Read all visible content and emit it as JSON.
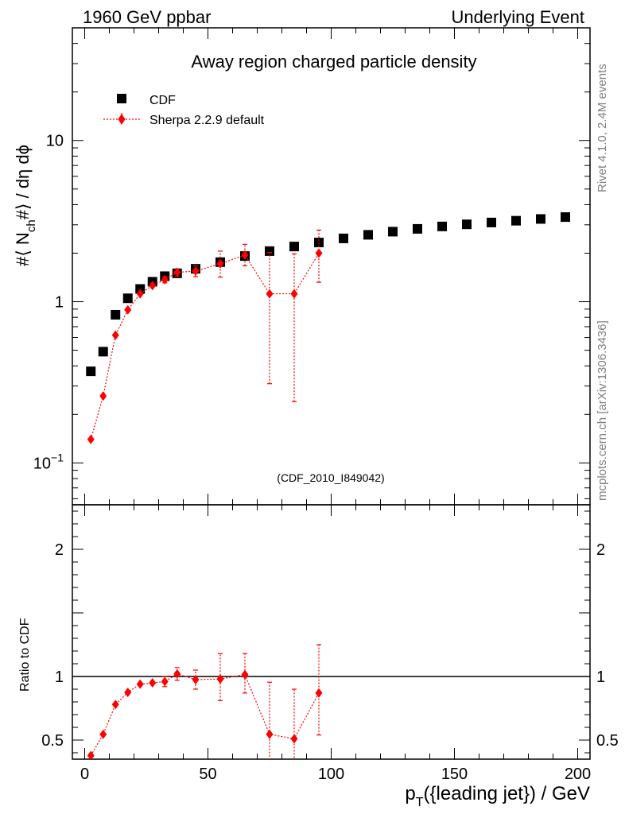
{
  "header": {
    "left": "1960 GeV ppbar",
    "right": "Underlying Event"
  },
  "side_labels": {
    "rivet": "Rivet 4.1.0,  2.4M events",
    "source": "mcplots.cern.ch [arXiv:1306.3436]"
  },
  "colors": {
    "data": "#000000",
    "mc": "#ff0000",
    "reference_line": "#000000"
  },
  "chart_data": [
    {
      "type": "scatter",
      "panel": "main",
      "title": "Away region charged particle density",
      "watermark": "(CDF_2010_I849042)",
      "xlabel_main": "p",
      "xlabel_sub": "T",
      "xlabel_rest": "({leading jet}) / GeV",
      "ylabel": {
        "prefix": "#⟨ N",
        "sub": "ch",
        "suffix": "#⟩ / dη dϕ"
      },
      "yscale": "log",
      "xlim": [
        -5,
        205
      ],
      "ylim": [
        0.055,
        50
      ],
      "x_ticks": [
        0,
        50,
        100,
        150,
        200
      ],
      "y_major_ticks": [
        {
          "value": 0.1,
          "base": "10",
          "exp": "−1"
        },
        {
          "value": 1,
          "label": "1"
        },
        {
          "value": 10,
          "label": "10"
        }
      ],
      "legend": {
        "position": "top-left",
        "entries": [
          {
            "label": "CDF",
            "marker": "square",
            "color": "#000000"
          },
          {
            "label": "Sherpa 2.2.9 default",
            "marker": "diamond",
            "color": "#ff0000"
          }
        ]
      },
      "series": [
        {
          "name": "CDF",
          "marker": "square",
          "color": "#000000",
          "x": [
            2.5,
            7.5,
            12.5,
            17.5,
            22.5,
            27.5,
            32.5,
            37.5,
            45,
            55,
            65,
            75,
            85,
            95,
            105,
            115,
            125,
            135,
            145,
            155,
            165,
            175,
            185,
            195
          ],
          "y": [
            0.37,
            0.49,
            0.83,
            1.05,
            1.2,
            1.33,
            1.44,
            1.5,
            1.6,
            1.76,
            1.92,
            2.06,
            2.2,
            2.33,
            2.47,
            2.6,
            2.72,
            2.83,
            2.93,
            3.02,
            3.1,
            3.18,
            3.26,
            3.35
          ]
        },
        {
          "name": "Sherpa 2.2.9 default",
          "marker": "diamond",
          "color": "#ff0000",
          "line": "dotted",
          "x": [
            2.5,
            7.5,
            12.5,
            17.5,
            22.5,
            27.5,
            32.5,
            37.5,
            45,
            55,
            65,
            75,
            85,
            95
          ],
          "y": [
            0.14,
            0.26,
            0.62,
            0.89,
            1.12,
            1.26,
            1.37,
            1.52,
            1.55,
            1.72,
            1.95,
            1.12,
            1.12,
            2.0
          ],
          "err_low": [
            null,
            null,
            null,
            null,
            null,
            null,
            0.06,
            0.08,
            0.12,
            0.3,
            0.28,
            0.81,
            0.88,
            0.68
          ],
          "err_high": [
            null,
            null,
            null,
            null,
            null,
            null,
            0.06,
            0.08,
            0.12,
            0.34,
            0.32,
            0.9,
            0.86,
            0.78
          ]
        }
      ]
    },
    {
      "type": "scatter",
      "panel": "ratio",
      "ylabel": "Ratio to CDF",
      "xlim": [
        -5,
        205
      ],
      "ylim": [
        0.35,
        2.35
      ],
      "y_ticks": [
        {
          "value": 0.5,
          "label": "0.5"
        },
        {
          "value": 1,
          "label": "1"
        },
        {
          "value": 2,
          "label": "2"
        }
      ],
      "reference_value": 1,
      "series": [
        {
          "name": "Sherpa 2.2.9 default / CDF",
          "marker": "diamond",
          "color": "#ff0000",
          "line": "dotted",
          "x": [
            2.5,
            7.5,
            12.5,
            17.5,
            22.5,
            27.5,
            32.5,
            37.5,
            45,
            55,
            65,
            75,
            85,
            95
          ],
          "y": [
            0.378,
            0.545,
            0.78,
            0.875,
            0.94,
            0.95,
            0.96,
            1.02,
            0.975,
            0.98,
            1.015,
            0.545,
            0.51,
            0.87
          ],
          "err_low": [
            null,
            null,
            null,
            null,
            null,
            null,
            0.04,
            0.05,
            0.075,
            0.17,
            0.145,
            0.4,
            0.4,
            0.33
          ],
          "err_high": [
            null,
            null,
            null,
            null,
            null,
            null,
            0.04,
            0.05,
            0.075,
            0.2,
            0.165,
            0.41,
            0.39,
            0.38
          ]
        }
      ]
    }
  ]
}
